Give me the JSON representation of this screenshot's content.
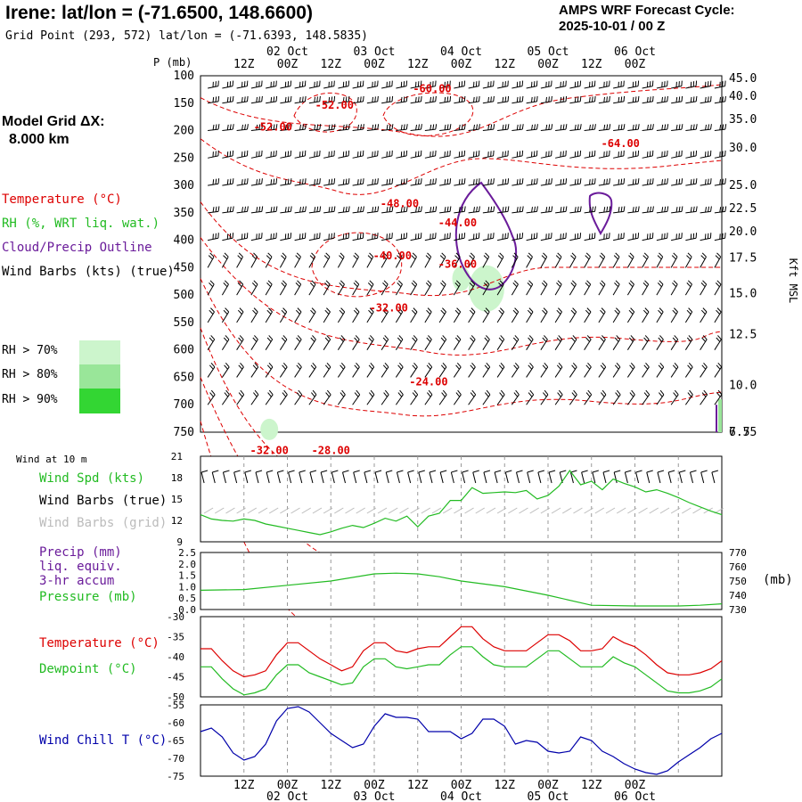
{
  "header": {
    "title": "Irene:  lat/lon = (-71.6500, 148.6600)",
    "subtitle": "Grid Point (293, 572) lat/lon = (-71.6393, 148.5835)",
    "cycle_line1": "AMPS WRF Forecast Cycle:",
    "cycle_line2": "2025-10-01 / 00  Z",
    "model_grid_line1": "Model Grid ΔX:",
    "model_grid_line2": "8.000 km"
  },
  "legend": {
    "temperature": "Temperature (°C)",
    "rh": "RH (%, WRT liq. wat.)",
    "cloud": "Cloud/Precip Outline",
    "barbs": "Wind Barbs (kts) (true)",
    "rh_levels": [
      "RH > 70%",
      "RH > 80%",
      "RH > 90%"
    ],
    "rh_colors": [
      "#ccf5cc",
      "#99e699",
      "#33d633"
    ]
  },
  "time_axis": {
    "hour_labels": [
      "12Z",
      "00Z",
      "12Z",
      "00Z",
      "12Z",
      "00Z",
      "12Z",
      "00Z",
      "12Z",
      "00Z"
    ],
    "date_labels": [
      "02 Oct",
      "03 Oct",
      "04 Oct",
      "05 Oct",
      "06 Oct"
    ]
  },
  "colors": {
    "temperature": "#dd0000",
    "rh": "#22bb22",
    "cloud": "#6a1b9a",
    "pressure": "#22bb22",
    "dewpoint": "#22bb22",
    "windchill": "#0000aa",
    "grid": "#999999"
  },
  "chart_data": [
    {
      "type": "heatmap",
      "name": "cross-section",
      "y_title": "P (mb)",
      "y_right_title": "Kft MSL",
      "pressure_levels": [
        100,
        150,
        200,
        250,
        300,
        350,
        400,
        450,
        500,
        550,
        600,
        650,
        700,
        750
      ],
      "height_labels": [
        "45.0",
        "40.0",
        "35.0",
        "30.0",
        "25.0",
        "22.5",
        "20.0",
        "17.5",
        "15.0",
        "12.5",
        "10.0",
        "7.5",
        "6.75"
      ],
      "height_label_pressures": [
        105,
        137,
        180,
        232,
        300,
        342,
        384,
        432,
        497,
        572,
        665,
        790,
        815
      ],
      "temperature_labels": [
        {
          "text": "-52.00",
          "time_h": 37,
          "p": 160
        },
        {
          "text": "-52.00",
          "time_h": 20,
          "p": 200
        },
        {
          "text": "-60.00",
          "time_h": 64,
          "p": 130
        },
        {
          "text": "-64.00",
          "time_h": 116,
          "p": 230
        },
        {
          "text": "-48.00",
          "time_h": 55,
          "p": 340
        },
        {
          "text": "-44.00",
          "time_h": 71,
          "p": 375
        },
        {
          "text": "-40.00",
          "time_h": 53,
          "p": 435
        },
        {
          "text": "-36.00",
          "time_h": 71,
          "p": 450
        },
        {
          "text": "-32.00",
          "time_h": 52,
          "p": 530
        },
        {
          "text": "-24.00",
          "time_h": 63,
          "p": 665
        },
        {
          "text": "-32.00",
          "time_h": 19,
          "p": 790
        },
        {
          "text": "-28.00",
          "time_h": 36,
          "p": 790
        }
      ]
    },
    {
      "type": "line",
      "name": "wind-10m",
      "title": "Wind at 10 m",
      "series_label": "Wind Spd (kts)",
      "barbs_true_label": "Wind Barbs (true)",
      "barbs_grid_label": "Wind Barbs (grid)",
      "ylim": [
        9,
        21
      ],
      "yticks": [
        9,
        12,
        15,
        18,
        21
      ],
      "x_hours": [
        0,
        3,
        6,
        9,
        12,
        15,
        18,
        21,
        24,
        27,
        30,
        33,
        36,
        39,
        42,
        45,
        48,
        51,
        54,
        57,
        60,
        63,
        66,
        69,
        72,
        75,
        78,
        81,
        84,
        87,
        90,
        93,
        96,
        99,
        102,
        105,
        108,
        111,
        114,
        117,
        120,
        123,
        126,
        129,
        132,
        135,
        138,
        141,
        144
      ],
      "values": [
        12.8,
        12.2,
        12.0,
        11.9,
        12.2,
        12.0,
        11.5,
        11.2,
        10.9,
        10.6,
        10.3,
        10.0,
        10.4,
        10.9,
        11.3,
        11.0,
        11.6,
        12.3,
        11.9,
        12.6,
        11.1,
        12.6,
        13.0,
        14.8,
        14.8,
        16.6,
        15.8,
        15.9,
        16.0,
        15.9,
        16.2,
        15.0,
        15.5,
        16.8,
        19.0,
        17.0,
        17.5,
        16.3,
        17.8,
        17.2,
        16.7,
        16.0,
        16.3,
        15.8,
        15.2,
        14.5,
        13.9,
        13.3,
        12.8
      ]
    },
    {
      "type": "line",
      "name": "precip-pressure",
      "series_label_1": "Precip (mm)",
      "series_label_2": "liq. equiv.",
      "series_label_3": "3-hr accum",
      "series_label_4": "Pressure (mb)",
      "units_right": "(mb)",
      "ylim_left": [
        0,
        2.5
      ],
      "yticks_left": [
        "0.0",
        "0.5",
        "1.0",
        "1.5",
        "2.0",
        "2.5"
      ],
      "ylim_right": [
        730,
        770
      ],
      "yticks_right": [
        730,
        740,
        750,
        760,
        770
      ],
      "x_hours": [
        0,
        12,
        24,
        36,
        48,
        54,
        60,
        66,
        72,
        84,
        96,
        108,
        120,
        126,
        132,
        138,
        144
      ],
      "pressure": [
        743.5,
        744,
        747,
        750,
        755,
        755.5,
        755,
        753,
        750,
        746,
        740,
        733,
        732.5,
        732.5,
        732.5,
        733,
        734
      ],
      "precip": []
    },
    {
      "type": "line",
      "name": "temperature-dewpoint",
      "series_1": "Temperature (°C)",
      "series_2": "Dewpoint (°C)",
      "ylim": [
        -50,
        -30
      ],
      "yticks": [
        -30,
        -35,
        -40,
        -45,
        -50
      ],
      "x_hours": [
        0,
        3,
        6,
        9,
        12,
        15,
        18,
        21,
        24,
        27,
        30,
        33,
        36,
        39,
        42,
        45,
        48,
        51,
        54,
        57,
        60,
        63,
        66,
        69,
        72,
        75,
        78,
        81,
        84,
        87,
        90,
        93,
        96,
        99,
        102,
        105,
        108,
        111,
        114,
        117,
        120,
        123,
        126,
        129,
        132,
        135,
        138,
        141,
        144
      ],
      "temperature": [
        -38,
        -38,
        -41,
        -43.5,
        -45,
        -44.5,
        -43.5,
        -39.5,
        -36.5,
        -36.5,
        -38.5,
        -40.5,
        -42,
        -43.5,
        -42.5,
        -38.5,
        -36.5,
        -36.5,
        -38.5,
        -39,
        -38,
        -37.5,
        -37.5,
        -35,
        -32.5,
        -32.5,
        -35.5,
        -37.5,
        -38.5,
        -38.5,
        -38.5,
        -36.5,
        -34.5,
        -34.5,
        -36,
        -38.5,
        -38.5,
        -38,
        -35,
        -36.5,
        -37.5,
        -39.5,
        -42,
        -44,
        -44.5,
        -44.5,
        -44,
        -43,
        -41
      ],
      "dewpoint": [
        -42.5,
        -42.5,
        -45.5,
        -48,
        -49.5,
        -49,
        -48,
        -44.5,
        -42,
        -42,
        -44,
        -45,
        -46,
        -47,
        -46.5,
        -42.5,
        -40.5,
        -40.5,
        -42.5,
        -43,
        -42.5,
        -42,
        -42,
        -39.5,
        -37.5,
        -37.5,
        -40,
        -42,
        -42.5,
        -42.5,
        -42.5,
        -40.5,
        -38.5,
        -38.5,
        -40.5,
        -42.5,
        -42.5,
        -42.5,
        -40,
        -41.5,
        -42.5,
        -44.5,
        -46.5,
        -48.5,
        -49,
        -49,
        -48.5,
        -47.5,
        -45.5
      ]
    },
    {
      "type": "line",
      "name": "wind-chill",
      "series_1": "Wind Chill T (°C)",
      "ylim": [
        -75,
        -55
      ],
      "yticks": [
        -55,
        -60,
        -65,
        -70,
        -75
      ],
      "x_hours": [
        0,
        3,
        6,
        9,
        12,
        15,
        18,
        21,
        24,
        27,
        30,
        33,
        36,
        39,
        42,
        45,
        48,
        51,
        54,
        57,
        60,
        63,
        66,
        69,
        72,
        75,
        78,
        81,
        84,
        87,
        90,
        93,
        96,
        99,
        102,
        105,
        108,
        111,
        114,
        117,
        120,
        123,
        126,
        129,
        132,
        135,
        138,
        141,
        144
      ],
      "values": [
        -62.5,
        -61.5,
        -64,
        -68.5,
        -70.5,
        -69.5,
        -66,
        -59.5,
        -56,
        -55.5,
        -57,
        -60,
        -63,
        -65,
        -67,
        -66,
        -61,
        -57.5,
        -58.5,
        -58.5,
        -59,
        -62.5,
        -62.5,
        -62.5,
        -64.5,
        -63,
        -59,
        -59,
        -61,
        -66,
        -65,
        -65.5,
        -68,
        -68.5,
        -68,
        -64,
        -65,
        -68,
        -69.5,
        -71.5,
        -73,
        -74,
        -74.5,
        -73.5,
        -71,
        -69,
        -67,
        -64.5,
        -63
      ]
    }
  ]
}
